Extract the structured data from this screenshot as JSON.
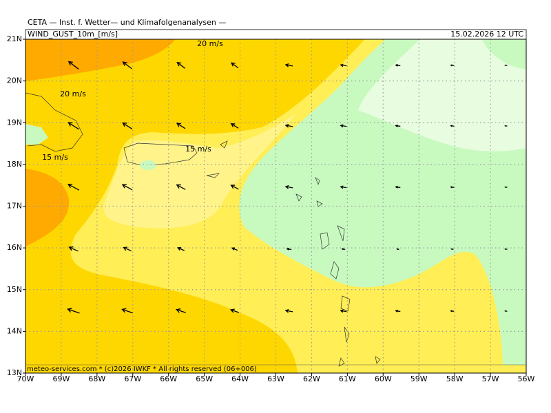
{
  "header": {
    "title": "CETA — Inst. f. Wetter— und Klimafolgenanalysen —",
    "field": "WIND_GUST_10m_[m/s]",
    "valid_time": "15.02.2026 12 UTC"
  },
  "map": {
    "lat_labels": [
      "21N",
      "20N",
      "19N",
      "18N",
      "17N",
      "16N",
      "15N",
      "14N",
      "13N"
    ],
    "lon_labels": [
      "70W",
      "69W",
      "68W",
      "67W",
      "66W",
      "65W",
      "64W",
      "63W",
      "62W",
      "61W",
      "60W",
      "59W",
      "58W",
      "57W",
      "56W"
    ],
    "contour_labels": [
      "20 m/s",
      "20 m/s",
      "15 m/s",
      "15 m/s"
    ]
  },
  "footer": "meteo-services.com * (c)2026 IWKF * All rights reserved (06+006)"
}
